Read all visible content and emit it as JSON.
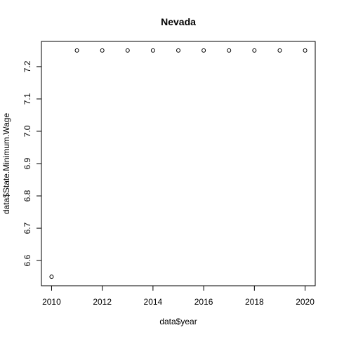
{
  "chart_data": {
    "type": "scatter",
    "title": "Nevada",
    "xlabel": "data$year",
    "ylabel": "data$State.Minimum.Wage",
    "x": [
      2010,
      2011,
      2012,
      2013,
      2014,
      2015,
      2016,
      2017,
      2018,
      2019,
      2020
    ],
    "y": [
      6.55,
      7.25,
      7.25,
      7.25,
      7.25,
      7.25,
      7.25,
      7.25,
      7.25,
      7.25,
      7.25
    ],
    "xticks": [
      "2010",
      "2012",
      "2014",
      "2016",
      "2018",
      "2020"
    ],
    "yticks": [
      "6.6",
      "6.7",
      "6.8",
      "6.9",
      "7.0",
      "7.1",
      "7.2"
    ],
    "xlim": [
      2009.6,
      2020.4
    ],
    "ylim": [
      6.522,
      7.278
    ],
    "grid": false,
    "marker": "open-circle"
  }
}
